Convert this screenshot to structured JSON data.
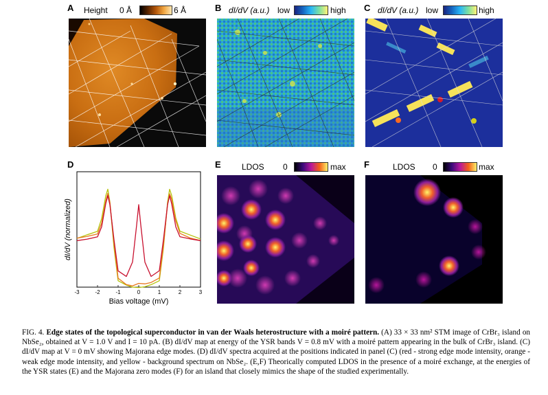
{
  "panels": {
    "a": {
      "letter": "A",
      "title": "Height",
      "cmin": "0 Å",
      "cmax": "6 Å"
    },
    "b": {
      "letter": "B",
      "title": "dI/dV (a.u.)",
      "low": "low",
      "high": "high"
    },
    "c": {
      "letter": "C",
      "title": "dI/dV (a.u.)",
      "low": "low",
      "high": "high"
    },
    "d": {
      "letter": "D",
      "ylabel": "dI/dV (normalized)",
      "xlabel": "Bias voltage (mV)",
      "xticks": [
        "-3",
        "-2",
        "-1",
        "0",
        "1",
        "2",
        "3"
      ]
    },
    "e": {
      "letter": "E",
      "title": "LDOS",
      "zero": "0",
      "max": "max"
    },
    "f": {
      "letter": "F",
      "title": "LDOS",
      "zero": "0",
      "max": "max"
    }
  },
  "chart_data": {
    "type": "line",
    "title": "",
    "xlabel": "Bias voltage (mV)",
    "ylabel": "dI/dV (normalized)",
    "xlim": [
      -3,
      3
    ],
    "ylim": [
      0,
      1.35
    ],
    "series": [
      {
        "name": "red - strong edge mode",
        "color": "#c8102e",
        "x": [
          -3,
          -2.5,
          -2,
          -1.8,
          -1.6,
          -1.5,
          -1.4,
          -1.2,
          -1,
          -0.6,
          -0.3,
          -0.1,
          0,
          0.1,
          0.3,
          0.6,
          1,
          1.2,
          1.4,
          1.5,
          1.6,
          1.8,
          2,
          2.5,
          3
        ],
        "y": [
          0.53,
          0.56,
          0.6,
          0.72,
          0.98,
          1.06,
          0.95,
          0.55,
          0.2,
          0.14,
          0.3,
          0.72,
          0.95,
          0.72,
          0.3,
          0.14,
          0.2,
          0.55,
          0.95,
          1.06,
          0.98,
          0.72,
          0.6,
          0.56,
          0.53
        ]
      },
      {
        "name": "orange - weak edge mode",
        "color": "#e8771e",
        "x": [
          -3,
          -2.5,
          -2,
          -1.8,
          -1.6,
          -1.5,
          -1.4,
          -1.2,
          -1,
          -0.6,
          -0.3,
          0,
          0.3,
          0.6,
          1,
          1.2,
          1.4,
          1.5,
          1.6,
          1.8,
          2,
          2.5,
          3
        ],
        "y": [
          0.56,
          0.58,
          0.62,
          0.76,
          1.02,
          1.1,
          0.98,
          0.5,
          0.1,
          0.04,
          0.03,
          0.05,
          0.03,
          0.04,
          0.1,
          0.5,
          0.98,
          1.1,
          1.02,
          0.76,
          0.62,
          0.58,
          0.56
        ]
      },
      {
        "name": "yellow - background spectrum",
        "color": "#b5c20a",
        "x": [
          -3,
          -2.5,
          -2,
          -1.8,
          -1.6,
          -1.5,
          -1.4,
          -1.2,
          -1,
          -0.6,
          -0.3,
          0,
          0.3,
          0.6,
          1,
          1.2,
          1.4,
          1.5,
          1.6,
          1.8,
          2,
          2.5,
          3
        ],
        "y": [
          0.57,
          0.6,
          0.64,
          0.8,
          1.08,
          1.16,
          1.0,
          0.45,
          0.06,
          0.02,
          0.01,
          0.01,
          0.01,
          0.02,
          0.06,
          0.45,
          1.0,
          1.16,
          1.08,
          0.8,
          0.64,
          0.6,
          0.57
        ]
      }
    ]
  },
  "caption": {
    "lead": "FIG. 4.",
    "bold_title": "Edge states of the topological superconductor in van der Waals heterostructure with a moiré pattern.",
    "text": "(A) 33 × 33 nm² STM image of CrBr₃ island on NbSe₂, obtained at V = 1.0 V and I = 10 pA. (B) dI/dV map at energy of the YSR bands V = 0.8 mV with a moiré pattern appearing in the bulk of CrBr₃ island. (C) dI/dV map at V = 0 mV showing Majorana edge modes. (D) dI/dV spectra acquired at the positions indicated in panel (C) (red - strong edge mode intensity, orange - weak edge mode intensity, and yellow - background spectrum on NbSe₂. (E,F) Theorically computed LDOS in the presence of a moiré exchange, at the energies of the YSR states (E) and the Majorana zero modes (F) for an island that closely mimics the shape of the studied experimentally."
  }
}
